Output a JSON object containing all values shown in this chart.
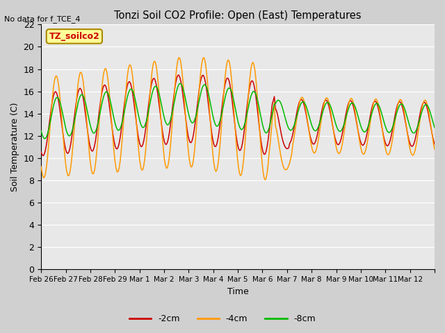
{
  "title": "Tonzi Soil CO2 Profile: Open (East) Temperatures",
  "no_data_text": "No data for f_TCE_4",
  "ylabel": "Soil Temperature (C)",
  "xlabel": "Time",
  "legend_label": "TZ_soilco2",
  "ylim": [
    0,
    22
  ],
  "yticks": [
    0,
    2,
    4,
    6,
    8,
    10,
    12,
    14,
    16,
    18,
    20,
    22
  ],
  "line_colors": {
    "neg2cm": "#cc0000",
    "neg4cm": "#ff9900",
    "neg8cm": "#00bb00"
  },
  "legend_entries": [
    "-2cm",
    "-4cm",
    "-8cm"
  ],
  "x_tick_labels": [
    "Feb 26",
    "Feb 27",
    "Feb 28",
    "Feb 29",
    "Mar 1",
    "Mar 2",
    "Mar 3",
    "Mar 4",
    "Mar 5",
    "Mar 6",
    "Mar 7",
    "Mar 8",
    "Mar 9",
    "Mar 10",
    "Mar 11",
    "Mar 12"
  ],
  "n_days": 16,
  "samples_per_day": 24
}
